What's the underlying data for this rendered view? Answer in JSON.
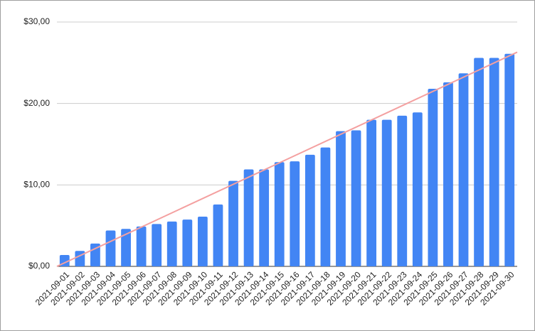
{
  "chart_data": {
    "type": "bar",
    "categories": [
      "2021-09-01",
      "2021-09-02",
      "2021-09-03",
      "2021-09-04",
      "2021-09-05",
      "2021-09-06",
      "2021-09-07",
      "2021-09-08",
      "2021-09-09",
      "2021-09-10",
      "2021-09-11",
      "2021-09-12",
      "2021-09-13",
      "2021-09-14",
      "2021-09-15",
      "2021-09-16",
      "2021-09-17",
      "2021-09-18",
      "2021-09-19",
      "2021-09-20",
      "2021-09-21",
      "2021-09-22",
      "2021-09-23",
      "2021-09-24",
      "2021-09-25",
      "2021-09-26",
      "2021-09-27",
      "2021-09-28",
      "2021-09-29",
      "2021-09-30"
    ],
    "values": [
      1.4,
      1.9,
      2.8,
      4.4,
      4.6,
      4.9,
      5.2,
      5.5,
      5.75,
      6.1,
      7.6,
      10.5,
      11.9,
      11.9,
      12.8,
      12.9,
      13.7,
      14.6,
      16.6,
      16.7,
      18.0,
      18.0,
      18.5,
      18.9,
      21.8,
      22.6,
      23.7,
      25.6,
      25.6,
      26.1
    ],
    "color": "#4285f4",
    "trendline": {
      "color": "#f4a0a0",
      "values": [
        0,
        26.3
      ]
    },
    "ylim": [
      0,
      30
    ],
    "yticks": [
      {
        "value": 0,
        "label": "$0,00"
      },
      {
        "value": 10,
        "label": "$10,00"
      },
      {
        "value": 20,
        "label": "$20,00"
      },
      {
        "value": 30,
        "label": "$30,00"
      }
    ],
    "grid": true
  }
}
